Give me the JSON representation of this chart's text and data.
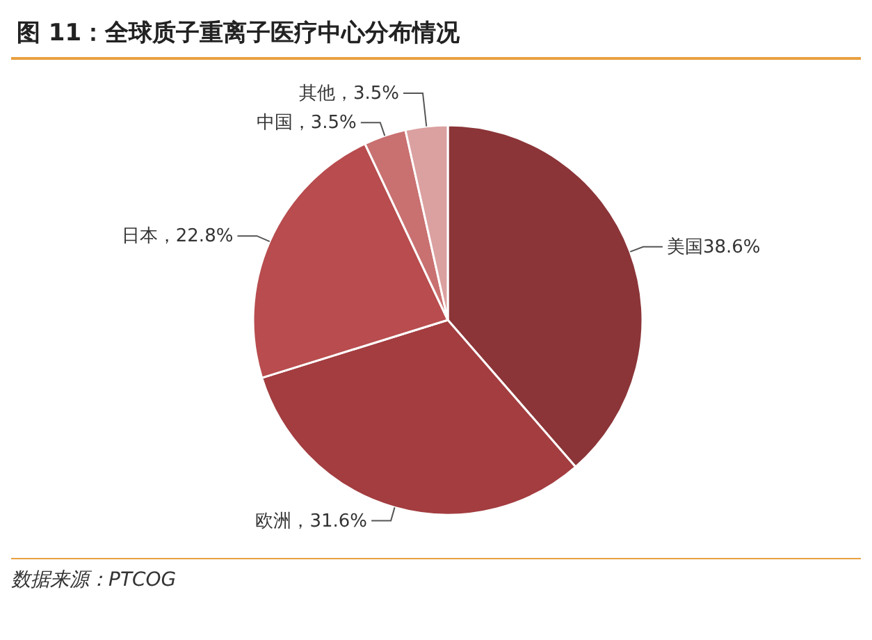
{
  "chart_data": {
    "type": "pie",
    "title": "图 11：全球质子重离子医疗中心分布情况",
    "categories": [
      "美国",
      "欧洲",
      "日本",
      "中国",
      "其他"
    ],
    "values": [
      38.6,
      31.6,
      22.8,
      3.5,
      3.5
    ],
    "colors": [
      "#8b3538",
      "#a33d40",
      "#b84c4e",
      "#c97070",
      "#dba0a0"
    ],
    "value_labels": [
      "38.6%",
      "，31.6%",
      "，22.8%",
      "，3.5%",
      "，3.5%"
    ],
    "annotations": [
      "数据来源：PTCOG"
    ]
  }
}
